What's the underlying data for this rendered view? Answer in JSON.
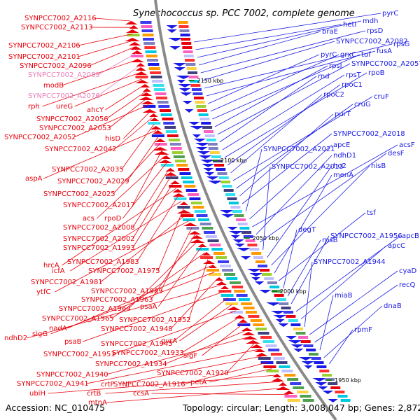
{
  "title": "Synechococcus sp. PCC 7002, complete genome",
  "footer": {
    "accession": "Accession: NC_010475",
    "topology": "Topology: circular; Length: 3,008,047 bp; Genes: 2,872"
  },
  "colors": {
    "reverse_strand": "#e8000b",
    "forward_strand": "#1a1ae6",
    "pseudogene": "#e87fb8",
    "backbone": "#8a8a8a",
    "tick": "#1a7a1a"
  },
  "kbp_ticks": [
    "2150 kbp",
    "2100 kbp",
    "2050 kbp",
    "2000 kbp",
    "1950 kbp"
  ],
  "left_labels": [
    {
      "text": "SYNPCC7002_A2116",
      "color": "red"
    },
    {
      "text": "SYNPCC7002_A2113",
      "color": "red"
    },
    {
      "text": "SYNPCC7002_A2106",
      "color": "red"
    },
    {
      "text": "SYNPCC7002_A2101",
      "color": "red"
    },
    {
      "text": "SYNPCC7002_A2096",
      "color": "red"
    },
    {
      "text": "SYNPCC7002_A2089",
      "color": "pink"
    },
    {
      "text": "modB",
      "color": "red"
    },
    {
      "text": "SYNPCC7002_A2076",
      "color": "pink"
    },
    {
      "text": "rph",
      "color": "red"
    },
    {
      "text": "ureG",
      "color": "red"
    },
    {
      "text": "ahcY",
      "color": "red"
    },
    {
      "text": "SYNPCC7002_A2056",
      "color": "red"
    },
    {
      "text": "SYNPCC7002_A2053",
      "color": "red"
    },
    {
      "text": "SYNPCC7002_A2052",
      "color": "red"
    },
    {
      "text": "hisD",
      "color": "red"
    },
    {
      "text": "SYNPCC7002_A2042",
      "color": "red"
    },
    {
      "text": "SYNPCC7002_A2035",
      "color": "red"
    },
    {
      "text": "aspA",
      "color": "red"
    },
    {
      "text": "SYNPCC7002_A2029",
      "color": "red"
    },
    {
      "text": "SYNPCC7002_A2025",
      "color": "red"
    },
    {
      "text": "SYNPCC7002_A2017",
      "color": "red"
    },
    {
      "text": "acs",
      "color": "red"
    },
    {
      "text": "rpoD",
      "color": "red"
    },
    {
      "text": "SYNPCC7002_A2008",
      "color": "red"
    },
    {
      "text": "SYNPCC7002_A2002",
      "color": "red"
    },
    {
      "text": "SYNPCC7002_A1993",
      "color": "red"
    },
    {
      "text": "hrcA",
      "color": "red"
    },
    {
      "text": "SYNPCC7002_A1983",
      "color": "red"
    },
    {
      "text": "icfA",
      "color": "red"
    },
    {
      "text": "SYNPCC7002_A1975",
      "color": "red"
    },
    {
      "text": "SYNPCC7002_A1981",
      "color": "red"
    },
    {
      "text": "ytfC",
      "color": "red"
    },
    {
      "text": "SYNPCC7002_A1969",
      "color": "red"
    },
    {
      "text": "SYNPCC7002_A1963",
      "color": "red"
    },
    {
      "text": "SYNPCC7002_A1964",
      "color": "red"
    },
    {
      "text": "psaA",
      "color": "red"
    },
    {
      "text": "SYNPCC7002_A1965",
      "color": "red"
    },
    {
      "text": "SYNPCC7002_A1952",
      "color": "red"
    },
    {
      "text": "nadA",
      "color": "red"
    },
    {
      "text": "sigG",
      "color": "red"
    },
    {
      "text": "SYNPCC7002_A1948",
      "color": "red"
    },
    {
      "text": "ndhD2",
      "color": "red"
    },
    {
      "text": "psaB",
      "color": "red"
    },
    {
      "text": "SYNPCC7002_A1945",
      "color": "red"
    },
    {
      "text": "gvrA",
      "color": "red"
    },
    {
      "text": "SYNPCC7002_A1951",
      "color": "red"
    },
    {
      "text": "SYNPCC7002_A1933",
      "color": "red"
    },
    {
      "text": "sigF",
      "color": "red"
    },
    {
      "text": "SYNPCC7002_A1934",
      "color": "red"
    },
    {
      "text": "SYNPCC7002_A1940",
      "color": "red"
    },
    {
      "text": "SYNPCC7002_A1920",
      "color": "red"
    },
    {
      "text": "SYNPCC7002_A1941",
      "color": "red"
    },
    {
      "text": "crtP",
      "color": "red"
    },
    {
      "text": "SYNPCC7002_A1916",
      "color": "red"
    },
    {
      "text": "petA",
      "color": "red"
    },
    {
      "text": "ubiH",
      "color": "red"
    },
    {
      "text": "crtB",
      "color": "red"
    },
    {
      "text": "mtnA",
      "color": "red"
    },
    {
      "text": "ccsA",
      "color": "red"
    }
  ],
  "right_labels": [
    {
      "text": "pyrC",
      "color": "blue"
    },
    {
      "text": "hetI",
      "color": "blue"
    },
    {
      "text": "mdh",
      "color": "blue"
    },
    {
      "text": "braE",
      "color": "blue"
    },
    {
      "text": "rpsD",
      "color": "blue"
    },
    {
      "text": "SYNPCC7002_A2082",
      "color": "blue"
    },
    {
      "text": "rpsG",
      "color": "blue"
    },
    {
      "text": "fusA",
      "color": "blue"
    },
    {
      "text": "pyrC",
      "color": "blue"
    },
    {
      "text": "grxC",
      "color": "blue"
    },
    {
      "text": "tuf",
      "color": "blue"
    },
    {
      "text": "rpsJ",
      "color": "blue"
    },
    {
      "text": "SYNPCC7002_A2057",
      "color": "blue"
    },
    {
      "text": "rnd",
      "color": "blue"
    },
    {
      "text": "rpsT",
      "color": "blue"
    },
    {
      "text": "rpoB",
      "color": "blue"
    },
    {
      "text": "rpoC1",
      "color": "blue"
    },
    {
      "text": "rpoC2",
      "color": "blue"
    },
    {
      "text": "cruF",
      "color": "blue"
    },
    {
      "text": "cruG",
      "color": "blue"
    },
    {
      "text": "purT",
      "color": "blue"
    },
    {
      "text": "SYNPCC7002_A2018",
      "color": "blue"
    },
    {
      "text": "SYNPCC7002_A2021",
      "color": "blue"
    },
    {
      "text": "apcE",
      "color": "blue"
    },
    {
      "text": "acsF",
      "color": "blue"
    },
    {
      "text": "ndhD1",
      "color": "blue"
    },
    {
      "text": "desF",
      "color": "blue"
    },
    {
      "text": "SYNPCC7002_A2013",
      "color": "blue"
    },
    {
      "text": "ho2",
      "color": "blue"
    },
    {
      "text": "hisB",
      "color": "blue"
    },
    {
      "text": "menA",
      "color": "blue"
    },
    {
      "text": "tsf",
      "color": "blue"
    },
    {
      "text": "degT",
      "color": "blue"
    },
    {
      "text": "rpsB",
      "color": "blue"
    },
    {
      "text": "SYNPCC7002_A1956",
      "color": "blue"
    },
    {
      "text": "apcB",
      "color": "blue"
    },
    {
      "text": "apcC",
      "color": "blue"
    },
    {
      "text": "SYNPCC7002_A1944",
      "color": "blue"
    },
    {
      "text": "cyaD",
      "color": "blue"
    },
    {
      "text": "recQ",
      "color": "blue"
    },
    {
      "text": "miaB",
      "color": "blue"
    },
    {
      "text": "dnaB",
      "color": "blue"
    },
    {
      "text": "rpmF",
      "color": "blue"
    }
  ]
}
